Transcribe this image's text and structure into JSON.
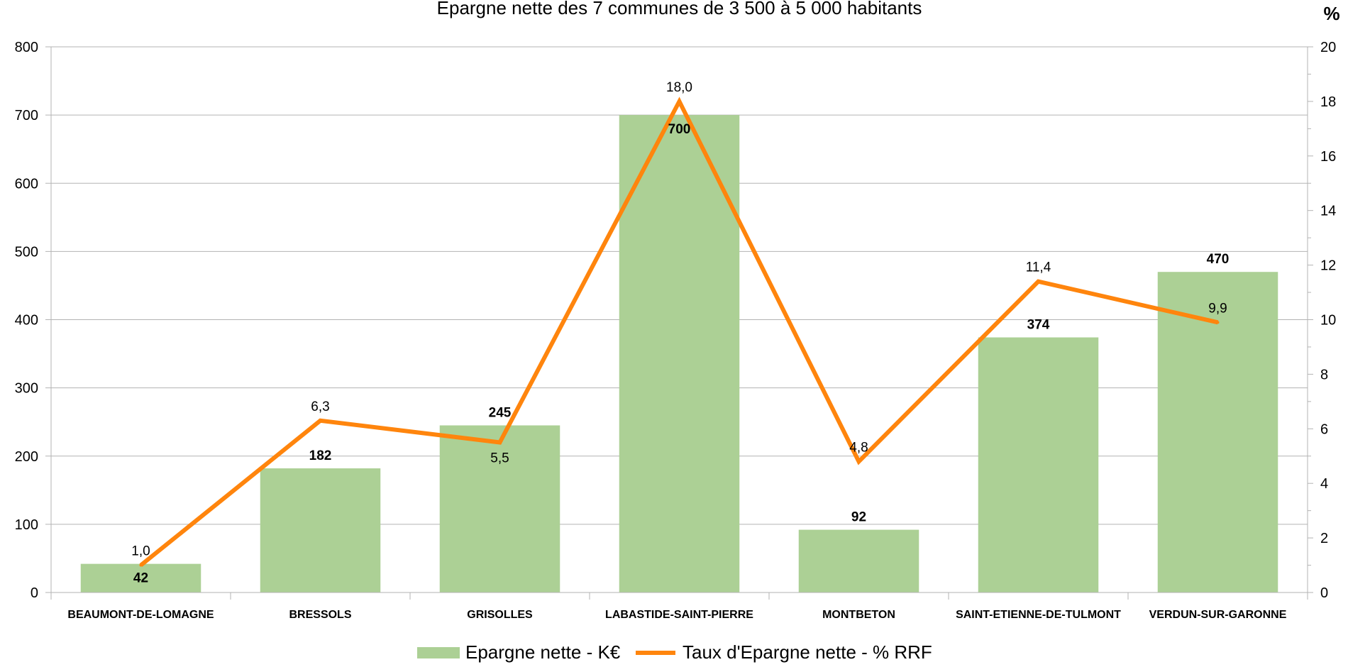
{
  "chart_data": {
    "type": "bar",
    "title": "Epargne nette des 7 communes de 3 500 à 5 000 habitants",
    "categories": [
      "BEAUMONT-DE-LOMAGNE",
      "BRESSOLS",
      "GRISOLLES",
      "LABASTIDE-SAINT-PIERRE",
      "MONTBETON",
      "SAINT-ETIENNE-DE-TULMONT",
      "VERDUN-SUR-GARONNE"
    ],
    "series": [
      {
        "name": "Epargne nette - K€",
        "type": "bar",
        "axis": "left",
        "color": "#acd095",
        "values": [
          42,
          182,
          245,
          700,
          92,
          374,
          470
        ],
        "labels": [
          "42",
          "182",
          "245",
          "700",
          "92",
          "374",
          "470"
        ]
      },
      {
        "name": "Taux d'Epargne nette - % RRF",
        "type": "line",
        "axis": "right",
        "color": "#ff850d",
        "values": [
          1.0,
          6.3,
          5.5,
          18.0,
          4.8,
          11.4,
          9.9
        ],
        "labels": [
          "1,0",
          "6,3",
          "5,5",
          "18,0",
          "4,8",
          "11,4",
          "9,9"
        ]
      }
    ],
    "y_left": {
      "min": 0,
      "max": 800,
      "ticks": [
        "0",
        "100",
        "200",
        "300",
        "400",
        "500",
        "600",
        "700",
        "800"
      ]
    },
    "y_right": {
      "min": 0,
      "max": 20,
      "unit": "%",
      "ticks": [
        "0",
        "2",
        "4",
        "6",
        "8",
        "10",
        "12",
        "14",
        "16",
        "18",
        "20"
      ]
    },
    "grid": true,
    "legend_position": "bottom"
  }
}
